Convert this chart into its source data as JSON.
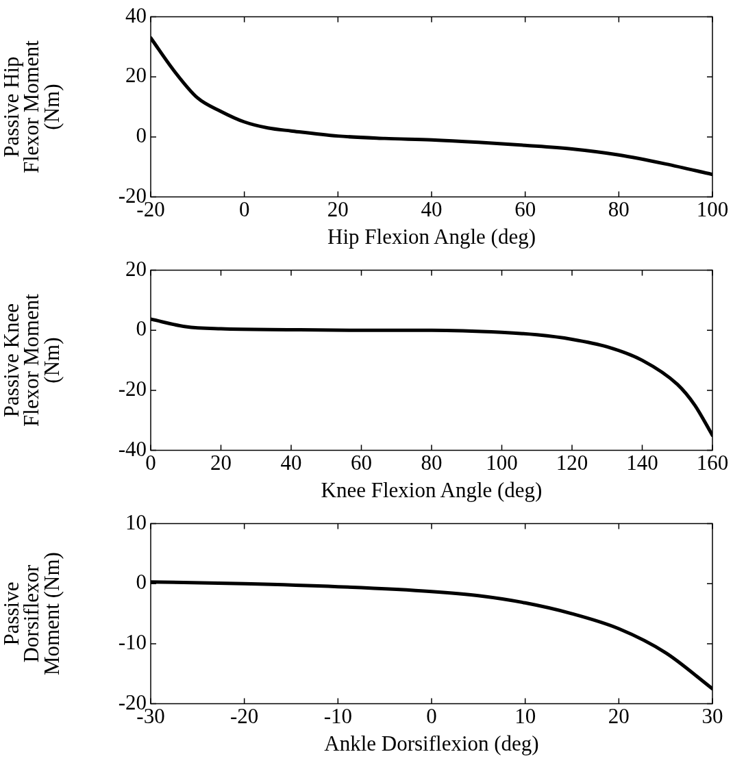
{
  "chart_data": [
    {
      "type": "line",
      "xlabel": "Hip Flexion Angle (deg)",
      "ylabel": "Passive Hip\nFlexor Moment\n(Nm)",
      "x": [
        -20,
        -15,
        -10,
        -5,
        0,
        5,
        10,
        20,
        30,
        40,
        50,
        60,
        70,
        80,
        90,
        100
      ],
      "series": [
        {
          "color": "#000000",
          "values": [
            33,
            22,
            13,
            8.5,
            5,
            3,
            2,
            0.3,
            -0.5,
            -1,
            -1.8,
            -2.8,
            -4,
            -6,
            -9,
            -12.5
          ]
        }
      ],
      "xlim": [
        -20,
        100
      ],
      "xticks": [
        -20,
        0,
        20,
        40,
        60,
        80,
        100
      ],
      "ylim": [
        -20,
        40
      ],
      "yticks": [
        -20,
        0,
        20,
        40
      ],
      "grid": false,
      "legend": false,
      "marker": "none",
      "line_style": "solid"
    },
    {
      "type": "line",
      "xlabel": "Knee Flexion Angle (deg)",
      "ylabel": "Passive Knee\nFlexor Moment\n(Nm)",
      "x": [
        0,
        10,
        20,
        40,
        60,
        80,
        100,
        110,
        120,
        130,
        140,
        150,
        155,
        160
      ],
      "series": [
        {
          "color": "#000000",
          "values": [
            3.7,
            1.2,
            0.5,
            0.2,
            0,
            0,
            -0.7,
            -1.5,
            -3,
            -5.5,
            -10,
            -18,
            -25,
            -35
          ]
        }
      ],
      "xlim": [
        0,
        160
      ],
      "xticks": [
        0,
        20,
        40,
        60,
        80,
        100,
        120,
        140,
        160
      ],
      "ylim": [
        -40,
        20
      ],
      "yticks": [
        -40,
        -20,
        0,
        20
      ],
      "grid": false,
      "legend": false,
      "marker": "none",
      "line_style": "solid"
    },
    {
      "type": "line",
      "xlabel": "Ankle Dorsiflexion (deg)",
      "ylabel": "Passive\nDorsiflexor\nMoment (Nm)",
      "x": [
        -30,
        -20,
        -10,
        0,
        5,
        10,
        15,
        20,
        25,
        30
      ],
      "series": [
        {
          "color": "#000000",
          "values": [
            0.3,
            0,
            -0.5,
            -1.3,
            -2,
            -3.2,
            -5,
            -7.5,
            -11.5,
            -17.5
          ]
        }
      ],
      "xlim": [
        -30,
        30
      ],
      "xticks": [
        -30,
        -20,
        -10,
        0,
        10,
        20,
        30
      ],
      "ylim": [
        -20,
        10
      ],
      "yticks": [
        -20,
        -10,
        0,
        10
      ],
      "grid": false,
      "legend": false,
      "marker": "none",
      "line_style": "solid"
    }
  ]
}
